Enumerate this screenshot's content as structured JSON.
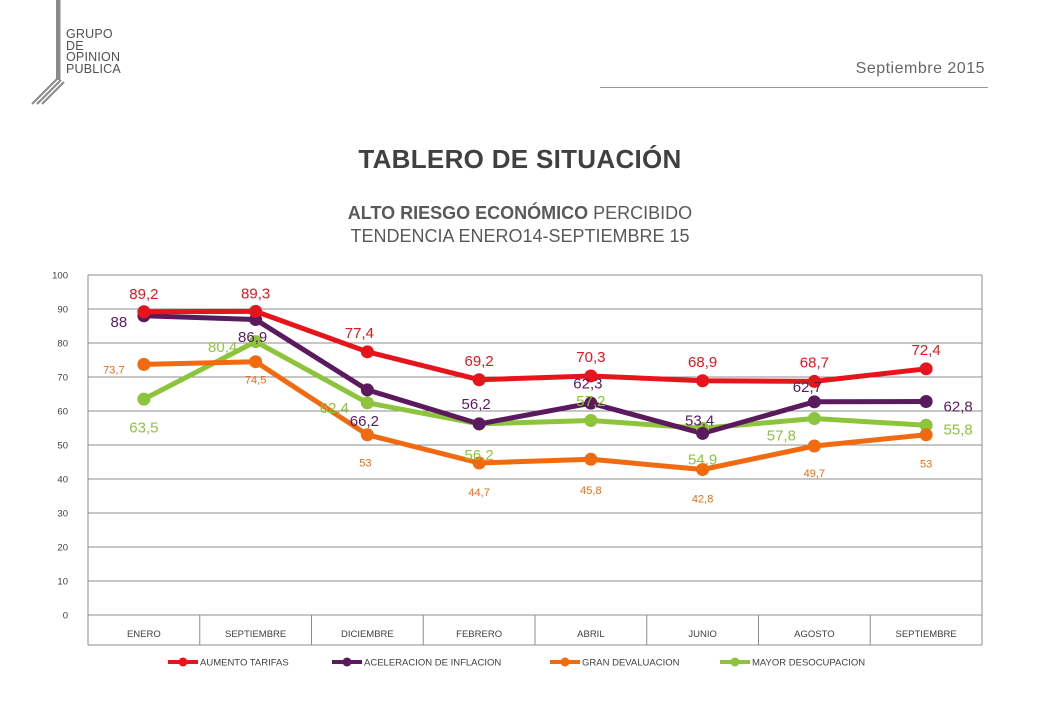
{
  "header": {
    "logo_lines": [
      "GRUPO",
      "DE",
      "OPINION",
      "PUBLICA"
    ],
    "date": "Septiembre 2015",
    "title": "TABLERO DE SITUACIÓN",
    "subtitle_bold": "ALTO RIESGO ECONÓMICO",
    "subtitle_rest": " PERCIBIDO",
    "subtitle2": "TENDENCIA ENERO14-SEPTIEMBRE 15"
  },
  "chart_data": {
    "type": "line",
    "categories": [
      "ENERO",
      "SEPTIEMBRE",
      "DICIEMBRE",
      "FEBRERO",
      "ABRIL",
      "JUNIO",
      "AGOSTO",
      "SEPTIEMBRE"
    ],
    "ylim": [
      0,
      100
    ],
    "yticks": [
      0,
      10,
      20,
      30,
      40,
      50,
      60,
      70,
      80,
      90,
      100
    ],
    "grid": true,
    "legend": "bottom",
    "series": [
      {
        "name": "AUMENTO TARIFAS",
        "color": "#e8141c",
        "values": [
          89.2,
          89.3,
          77.4,
          69.2,
          70.3,
          68.9,
          68.7,
          72.4
        ],
        "labels": [
          "89,2",
          "89,3",
          "77,4",
          "69,2",
          "70,3",
          "68,9",
          "68,7",
          "72,4"
        ]
      },
      {
        "name": "ACELERACION DE INFLACION",
        "color": "#5c1a5e",
        "values": [
          88,
          86.9,
          66.2,
          56.2,
          62.3,
          53.4,
          62.7,
          62.8
        ],
        "labels": [
          "88",
          "86,9",
          "66,2",
          "56,2",
          "62,3",
          "53,4",
          "62,7",
          "62,8"
        ]
      },
      {
        "name": "GRAN DEVALUACION",
        "color": "#f26a10",
        "values": [
          73.7,
          74.5,
          53,
          44.7,
          45.8,
          42.8,
          49.7,
          53
        ],
        "labels": [
          "73,7",
          "74,5",
          "53",
          "44,7",
          "45,8",
          "42,8",
          "49,7",
          "53"
        ]
      },
      {
        "name": "MAYOR DESOCUPACION",
        "color": "#8cc43c",
        "values": [
          63.5,
          80.4,
          62.4,
          56.2,
          57.2,
          54.9,
          57.8,
          55.8
        ],
        "labels": [
          "63,5",
          "80,4",
          "62,4",
          "56,2",
          "57,2",
          "54,9",
          "57,8",
          "55,8"
        ]
      }
    ]
  }
}
